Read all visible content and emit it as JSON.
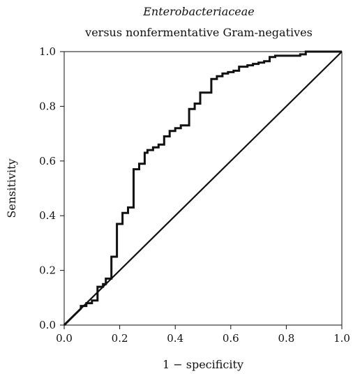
{
  "chart_data": {
    "type": "line",
    "title": "Enterobacteriaceae",
    "subtitle": "versus nonfermentative Gram-negatives",
    "xlabel": "1 − specificity",
    "ylabel": "Sensitivity",
    "xlim": [
      0,
      1
    ],
    "ylim": [
      0,
      1
    ],
    "xticks": [
      "0.0",
      "0.2",
      "0.4",
      "0.6",
      "0.8",
      "1.0"
    ],
    "yticks": [
      "0.0",
      "0.2",
      "0.4",
      "0.6",
      "0.8",
      "1.0"
    ],
    "grid": false,
    "line_color": "#111111",
    "series": [
      {
        "x": [
          0,
          0.03,
          0.06,
          0.06,
          0.08,
          0.08,
          0.1,
          0.1,
          0.12,
          0.12,
          0.14,
          0.14,
          0.15,
          0.15,
          0.17,
          0.17,
          0.19,
          0.19,
          0.21,
          0.21,
          0.23,
          0.23,
          0.25,
          0.25,
          0.27,
          0.27,
          0.29,
          0.29,
          0.3,
          0.3,
          0.32,
          0.32,
          0.34,
          0.34,
          0.36,
          0.36,
          0.38,
          0.38,
          0.4,
          0.4,
          0.42,
          0.42,
          0.45,
          0.45,
          0.47,
          0.47,
          0.49,
          0.49,
          0.53,
          0.53,
          0.55,
          0.55,
          0.57,
          0.57,
          0.59,
          0.59,
          0.61,
          0.61,
          0.63,
          0.63,
          0.66,
          0.66,
          0.68,
          0.68,
          0.7,
          0.7,
          0.72,
          0.72,
          0.74,
          0.74,
          0.76,
          0.76,
          0.85,
          0.85,
          0.87,
          0.87,
          1.0
        ],
        "y": [
          0,
          0.03,
          0.06,
          0.07,
          0.07,
          0.08,
          0.08,
          0.09,
          0.09,
          0.14,
          0.14,
          0.15,
          0.15,
          0.17,
          0.17,
          0.25,
          0.25,
          0.37,
          0.37,
          0.41,
          0.41,
          0.43,
          0.43,
          0.57,
          0.57,
          0.59,
          0.59,
          0.63,
          0.63,
          0.64,
          0.64,
          0.65,
          0.65,
          0.66,
          0.66,
          0.69,
          0.69,
          0.71,
          0.71,
          0.72,
          0.72,
          0.73,
          0.73,
          0.79,
          0.79,
          0.81,
          0.81,
          0.85,
          0.85,
          0.9,
          0.9,
          0.91,
          0.91,
          0.92,
          0.92,
          0.925,
          0.925,
          0.93,
          0.93,
          0.945,
          0.945,
          0.95,
          0.95,
          0.955,
          0.955,
          0.96,
          0.96,
          0.965,
          0.965,
          0.98,
          0.98,
          0.985,
          0.985,
          0.99,
          0.99,
          1.0,
          1.0
        ]
      },
      {
        "x": [
          0,
          1
        ],
        "y": [
          0,
          1
        ]
      }
    ]
  }
}
